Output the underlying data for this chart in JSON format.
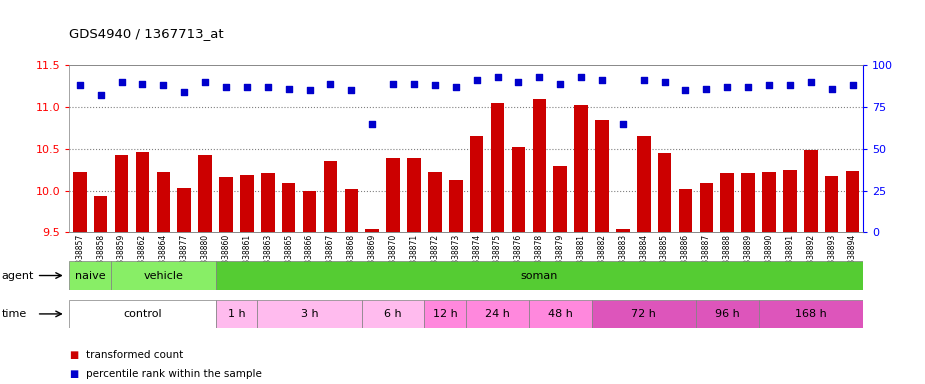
{
  "title": "GDS4940 / 1367713_at",
  "samples": [
    "GSM338857",
    "GSM338858",
    "GSM338859",
    "GSM338862",
    "GSM338864",
    "GSM338877",
    "GSM338880",
    "GSM338860",
    "GSM338861",
    "GSM338863",
    "GSM338865",
    "GSM338866",
    "GSM338867",
    "GSM338868",
    "GSM338869",
    "GSM338870",
    "GSM338871",
    "GSM338872",
    "GSM338873",
    "GSM338874",
    "GSM338875",
    "GSM338876",
    "GSM338878",
    "GSM338879",
    "GSM338881",
    "GSM338882",
    "GSM338883",
    "GSM338884",
    "GSM338885",
    "GSM338886",
    "GSM338887",
    "GSM338888",
    "GSM338889",
    "GSM338890",
    "GSM338891",
    "GSM338892",
    "GSM338893",
    "GSM338894"
  ],
  "bar_values": [
    10.22,
    9.93,
    10.43,
    10.46,
    10.22,
    10.03,
    10.43,
    10.16,
    10.19,
    10.21,
    10.09,
    9.99,
    10.35,
    10.02,
    9.54,
    10.39,
    10.39,
    10.22,
    10.13,
    10.65,
    11.05,
    10.52,
    11.1,
    10.3,
    11.03,
    10.84,
    9.54,
    10.65,
    10.45,
    10.02,
    10.09,
    10.21,
    10.21,
    10.22,
    10.25,
    10.49,
    10.17,
    10.23
  ],
  "percentile_values": [
    88,
    82,
    90,
    89,
    88,
    84,
    90,
    87,
    87,
    87,
    86,
    85,
    89,
    85,
    65,
    89,
    89,
    88,
    87,
    91,
    93,
    90,
    93,
    89,
    93,
    91,
    65,
    91,
    90,
    85,
    86,
    87,
    87,
    88,
    88,
    90,
    86,
    88
  ],
  "ylim": [
    9.5,
    11.5
  ],
  "yticks_left": [
    9.5,
    10.0,
    10.5,
    11.0,
    11.5
  ],
  "yticks_right": [
    0,
    25,
    50,
    75,
    100
  ],
  "bar_color": "#cc0000",
  "dot_color": "#0000cc",
  "bg_color": "#ffffff",
  "agent_naive_color": "#88ee66",
  "agent_vehicle_color": "#88ee66",
  "agent_soman_color": "#55cc33",
  "time_control_color": "#ffffff",
  "time_light_color": "#ffbbee",
  "time_mid_color": "#ff88dd",
  "time_dark_color": "#dd55bb",
  "group_defs": [
    {
      "label": "naive",
      "start": 0,
      "end": 2,
      "color_key": "agent_naive_color"
    },
    {
      "label": "vehicle",
      "start": 2,
      "end": 7,
      "color_key": "agent_vehicle_color"
    },
    {
      "label": "soman",
      "start": 7,
      "end": 38,
      "color_key": "agent_soman_color"
    }
  ],
  "time_groups": [
    {
      "label": "control",
      "start": 0,
      "end": 7,
      "color_key": "time_control_color"
    },
    {
      "label": "1 h",
      "start": 7,
      "end": 9,
      "color_key": "time_light_color"
    },
    {
      "label": "3 h",
      "start": 9,
      "end": 14,
      "color_key": "time_light_color"
    },
    {
      "label": "6 h",
      "start": 14,
      "end": 17,
      "color_key": "time_light_color"
    },
    {
      "label": "12 h",
      "start": 17,
      "end": 19,
      "color_key": "time_mid_color"
    },
    {
      "label": "24 h",
      "start": 19,
      "end": 22,
      "color_key": "time_mid_color"
    },
    {
      "label": "48 h",
      "start": 22,
      "end": 25,
      "color_key": "time_mid_color"
    },
    {
      "label": "72 h",
      "start": 25,
      "end": 30,
      "color_key": "time_dark_color"
    },
    {
      "label": "96 h",
      "start": 30,
      "end": 33,
      "color_key": "time_dark_color"
    },
    {
      "label": "168 h",
      "start": 33,
      "end": 38,
      "color_key": "time_dark_color"
    }
  ]
}
